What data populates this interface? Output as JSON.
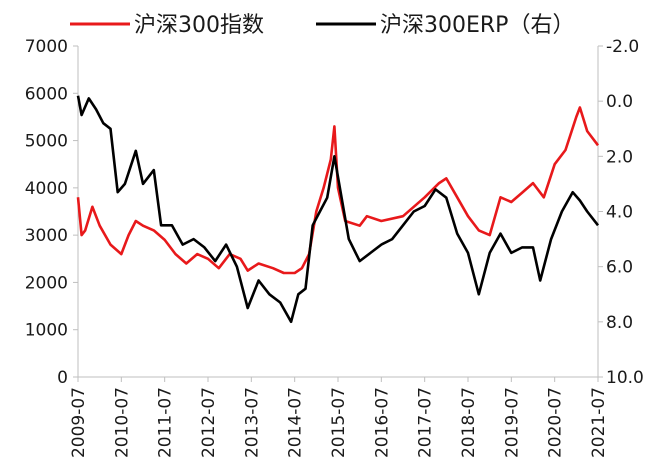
{
  "chart_data": {
    "type": "line",
    "title": "",
    "legend_position": "top",
    "grid": false,
    "x_tick_labels": [
      "2009-07",
      "2010-07",
      "2011-07",
      "2012-07",
      "2013-07",
      "2014-07",
      "2015-07",
      "2016-07",
      "2017-07",
      "2018-07",
      "2019-07",
      "2020-07",
      "2021-07"
    ],
    "y_left": {
      "range": [
        0,
        7000
      ],
      "ticks": [
        "0",
        "1000",
        "2000",
        "3000",
        "4000",
        "5000",
        "6000",
        "7000"
      ]
    },
    "y_right": {
      "range": [
        -2.0,
        10.0
      ],
      "inverted": true,
      "ticks": [
        "-2.0",
        "0.0",
        "2.0",
        "4.0",
        "6.0",
        "8.0",
        "10.0"
      ]
    },
    "series": [
      {
        "name": "沪深300指数",
        "color": "#e8191b",
        "axis": "left",
        "x": [
          "2009-07",
          "2009-08",
          "2009-09",
          "2009-11",
          "2010-01",
          "2010-04",
          "2010-07",
          "2010-09",
          "2010-11",
          "2011-01",
          "2011-04",
          "2011-07",
          "2011-10",
          "2012-01",
          "2012-04",
          "2012-07",
          "2012-10",
          "2013-01",
          "2013-04",
          "2013-06",
          "2013-09",
          "2014-01",
          "2014-04",
          "2014-07",
          "2014-09",
          "2014-11",
          "2015-01",
          "2015-03",
          "2015-05",
          "2015-06",
          "2015-07",
          "2015-09",
          "2016-01",
          "2016-03",
          "2016-07",
          "2017-01",
          "2017-07",
          "2017-11",
          "2018-01",
          "2018-04",
          "2018-07",
          "2018-10",
          "2019-01",
          "2019-04",
          "2019-07",
          "2019-10",
          "2020-01",
          "2020-04",
          "2020-07",
          "2020-10",
          "2021-01",
          "2021-02",
          "2021-04",
          "2021-07"
        ],
        "values": [
          3800,
          3000,
          3100,
          3600,
          3200,
          2800,
          2600,
          3000,
          3300,
          3200,
          3100,
          2900,
          2600,
          2400,
          2600,
          2500,
          2300,
          2600,
          2500,
          2250,
          2400,
          2300,
          2200,
          2200,
          2300,
          2600,
          3500,
          4000,
          4600,
          5300,
          4000,
          3300,
          3200,
          3400,
          3300,
          3400,
          3800,
          4100,
          4200,
          3800,
          3400,
          3100,
          3000,
          3800,
          3700,
          3900,
          4100,
          3800,
          4500,
          4800,
          5500,
          5700,
          5200,
          4900
        ]
      },
      {
        "name": "沪深300ERP（右）",
        "color": "#000000",
        "axis": "right",
        "x": [
          "2009-07",
          "2009-08",
          "2009-10",
          "2009-12",
          "2010-02",
          "2010-04",
          "2010-06",
          "2010-08",
          "2010-11",
          "2011-01",
          "2011-04",
          "2011-06",
          "2011-09",
          "2011-12",
          "2012-03",
          "2012-06",
          "2012-09",
          "2012-12",
          "2013-03",
          "2013-06",
          "2013-09",
          "2013-12",
          "2014-03",
          "2014-06",
          "2014-08",
          "2014-10",
          "2014-12",
          "2015-02",
          "2015-04",
          "2015-06",
          "2015-08",
          "2015-10",
          "2016-01",
          "2016-04",
          "2016-07",
          "2016-10",
          "2017-01",
          "2017-04",
          "2017-07",
          "2017-10",
          "2018-01",
          "2018-04",
          "2018-07",
          "2018-10",
          "2019-01",
          "2019-04",
          "2019-07",
          "2019-10",
          "2020-01",
          "2020-03",
          "2020-06",
          "2020-09",
          "2020-12",
          "2021-02",
          "2021-04",
          "2021-07"
        ],
        "values": [
          -0.2,
          0.5,
          -0.1,
          0.3,
          0.8,
          1.0,
          3.3,
          3.0,
          1.8,
          3.0,
          2.5,
          4.5,
          4.5,
          5.2,
          5.0,
          5.3,
          5.8,
          5.2,
          6.0,
          7.5,
          6.5,
          7.0,
          7.3,
          8.0,
          7.0,
          6.8,
          4.5,
          4.0,
          3.5,
          2.0,
          3.5,
          5.0,
          5.8,
          5.5,
          5.2,
          5.0,
          4.5,
          4.0,
          3.8,
          3.2,
          3.5,
          4.8,
          5.5,
          7.0,
          5.5,
          4.8,
          5.5,
          5.3,
          5.3,
          6.5,
          5.0,
          4.0,
          3.3,
          3.6,
          4.0,
          4.5
        ]
      }
    ]
  }
}
